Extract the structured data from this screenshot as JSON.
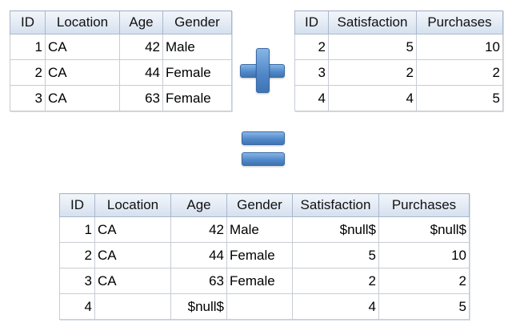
{
  "table_a": {
    "headers": [
      "ID",
      "Location",
      "Age",
      "Gender"
    ],
    "rows": [
      [
        "1",
        "CA",
        "42",
        "Male"
      ],
      [
        "2",
        "CA",
        "44",
        "Female"
      ],
      [
        "3",
        "CA",
        "63",
        "Female"
      ]
    ]
  },
  "table_b": {
    "headers": [
      "ID",
      "Satisfaction",
      "Purchases"
    ],
    "rows": [
      [
        "2",
        "5",
        "10"
      ],
      [
        "3",
        "2",
        "2"
      ],
      [
        "4",
        "4",
        "5"
      ]
    ]
  },
  "table_merged": {
    "headers": [
      "ID",
      "Location",
      "Age",
      "Gender",
      "Satisfaction",
      "Purchases"
    ],
    "rows": [
      [
        "1",
        "CA",
        "42",
        "Male",
        "$null$",
        "$null$"
      ],
      [
        "2",
        "CA",
        "44",
        "Female",
        "5",
        "10"
      ],
      [
        "3",
        "CA",
        "63",
        "Female",
        "2",
        "2"
      ],
      [
        "4",
        "",
        "$null$",
        "",
        "4",
        "5"
      ]
    ]
  },
  "symbols": {
    "plus_icon": "plus-icon",
    "equals_icon": "equals-icon",
    "accent_color": "#4f86c6",
    "header_color": "#d5e0ee"
  }
}
